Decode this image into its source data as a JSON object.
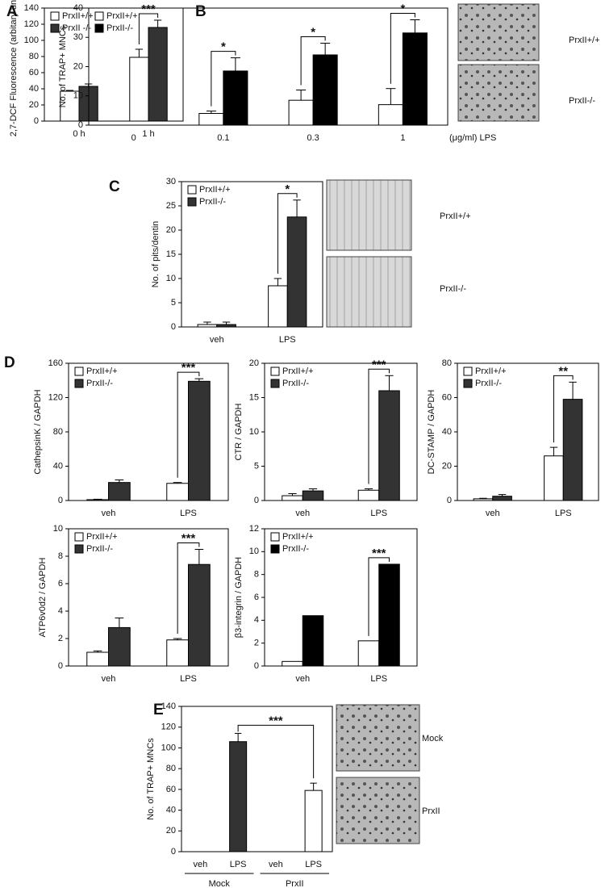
{
  "chart_data": [
    {
      "type": "bar",
      "panel": "A",
      "ylabel": "2,7-DCF Fluorescence (arbitary unit)",
      "categories": [
        "0 h",
        "1 h"
      ],
      "series": [
        {
          "name": "PrxII+/+",
          "color": "#ffffff",
          "values": [
            37,
            79
          ],
          "errors": [
            1,
            10
          ]
        },
        {
          "name": "PrxII -/-",
          "color": "#333333",
          "values": [
            43,
            116
          ],
          "errors": [
            3,
            9
          ]
        }
      ],
      "ylim": [
        0,
        140
      ],
      "yticks": [
        0,
        20,
        40,
        60,
        80,
        100,
        120,
        140
      ],
      "annotations": [
        null,
        "***"
      ]
    },
    {
      "type": "bar",
      "panel": "B",
      "ylabel": "No. of TRAP+ MNCs",
      "xlabel": "(μg/ml) LPS",
      "categories": [
        "0",
        "0.1",
        "0.3",
        "1"
      ],
      "series": [
        {
          "name": "PrxII+/+",
          "color": "#ffffff",
          "values": [
            0,
            4,
            8.5,
            7
          ],
          "errors": [
            0,
            0.8,
            3.5,
            5.5
          ]
        },
        {
          "name": "PrxII-/-",
          "color": "#000000",
          "values": [
            0,
            18.5,
            24,
            31.5
          ],
          "errors": [
            0,
            4.5,
            4,
            4.5
          ]
        }
      ],
      "ylim": [
        0,
        40
      ],
      "yticks": [
        0,
        10,
        20,
        30,
        40
      ],
      "annotations": [
        null,
        "*",
        "*",
        "*"
      ],
      "images": [
        {
          "label": "PrxII+/+"
        },
        {
          "label": "PrxII-/-"
        }
      ]
    },
    {
      "type": "bar",
      "panel": "C",
      "ylabel": "No. of pits/dentin",
      "categories": [
        "veh",
        "LPS"
      ],
      "series": [
        {
          "name": "PrxII+/+",
          "color": "#ffffff",
          "values": [
            0.5,
            8.5
          ],
          "errors": [
            0.5,
            1.5
          ]
        },
        {
          "name": "PrxII-/-",
          "color": "#333333",
          "values": [
            0.5,
            22.7
          ],
          "errors": [
            0.5,
            3.5
          ]
        }
      ],
      "ylim": [
        0,
        30
      ],
      "yticks": [
        0,
        5,
        10,
        15,
        20,
        25,
        30
      ],
      "annotations": [
        null,
        "*"
      ],
      "images": [
        {
          "label": "PrxII+/+"
        },
        {
          "label": "PrxII-/-"
        }
      ]
    },
    {
      "type": "bar",
      "panel": "D",
      "ylabel": "CathepsinK / GAPDH",
      "categories": [
        "veh",
        "LPS"
      ],
      "series": [
        {
          "name": "PrxII+/+",
          "color": "#ffffff",
          "values": [
            1,
            20
          ],
          "errors": [
            0.5,
            1
          ]
        },
        {
          "name": "PrxII-/-",
          "color": "#333333",
          "values": [
            21,
            139
          ],
          "errors": [
            3,
            3
          ]
        }
      ],
      "ylim": [
        0,
        160
      ],
      "yticks": [
        0,
        40,
        80,
        120,
        160
      ],
      "annotations": [
        null,
        "***"
      ]
    },
    {
      "type": "bar",
      "ylabel": "CTR / GAPDH",
      "categories": [
        "veh",
        "LPS"
      ],
      "series": [
        {
          "name": "PrxII+/+",
          "color": "#ffffff",
          "values": [
            0.7,
            1.5
          ],
          "errors": [
            0.3,
            0.2
          ]
        },
        {
          "name": "PrxII-/-",
          "color": "#333333",
          "values": [
            1.4,
            16
          ],
          "errors": [
            0.3,
            2.2
          ]
        }
      ],
      "ylim": [
        0,
        20
      ],
      "yticks": [
        0,
        5,
        10,
        15,
        20
      ],
      "annotations": [
        null,
        "***"
      ]
    },
    {
      "type": "bar",
      "ylabel": "DC-STAMP / GAPDH",
      "categories": [
        "veh",
        "LPS"
      ],
      "series": [
        {
          "name": "PrxII+/+",
          "color": "#ffffff",
          "values": [
            1,
            26
          ],
          "errors": [
            0.3,
            5
          ]
        },
        {
          "name": "PrxII-/-",
          "color": "#333333",
          "values": [
            2.5,
            59
          ],
          "errors": [
            1,
            10
          ]
        }
      ],
      "ylim": [
        0,
        80
      ],
      "yticks": [
        0,
        20,
        40,
        60,
        80
      ],
      "annotations": [
        null,
        "**"
      ]
    },
    {
      "type": "bar",
      "ylabel": "ATP6v0d2 / GAPDH",
      "categories": [
        "veh",
        "LPS"
      ],
      "series": [
        {
          "name": "PrxII+/+",
          "color": "#ffffff",
          "values": [
            1,
            1.9
          ],
          "errors": [
            0.1,
            0.1
          ]
        },
        {
          "name": "PrxII-/-",
          "color": "#333333",
          "values": [
            2.8,
            7.4
          ],
          "errors": [
            0.7,
            1.1
          ]
        }
      ],
      "ylim": [
        0,
        10
      ],
      "yticks": [
        0,
        2,
        4,
        6,
        8,
        10
      ],
      "annotations": [
        null,
        "***"
      ]
    },
    {
      "type": "bar",
      "ylabel": "β3-integrin / GAPDH",
      "categories": [
        "veh",
        "LPS"
      ],
      "series": [
        {
          "name": "PrxII+/+",
          "color": "#ffffff",
          "values": [
            0.4,
            2.2
          ]
        },
        {
          "name": "PrxII-/-",
          "color": "#000000",
          "values": [
            4.4,
            8.9
          ]
        }
      ],
      "ylim": [
        0,
        12
      ],
      "yticks": [
        0,
        2,
        4,
        6,
        8,
        10,
        12
      ],
      "annotations": [
        null,
        "***"
      ]
    },
    {
      "type": "bar",
      "panel": "E",
      "ylabel": "No. of TRAP+ MNCs",
      "categories": [
        "veh",
        "LPS",
        "veh",
        "LPS"
      ],
      "groups": [
        "Mock",
        "PrxII"
      ],
      "series": [
        {
          "colors": [
            "#333333",
            "#333333",
            "#ffffff",
            "#ffffff"
          ],
          "values": [
            0,
            106,
            0,
            59
          ],
          "errors": [
            0,
            8,
            0,
            7
          ]
        }
      ],
      "ylim": [
        0,
        140
      ],
      "yticks": [
        0,
        20,
        40,
        60,
        80,
        100,
        120,
        140
      ],
      "annotations": [
        null,
        "***",
        null,
        null
      ],
      "comparison": "across",
      "images": [
        {
          "label": "Mock"
        },
        {
          "label": "PrxII"
        }
      ]
    }
  ]
}
